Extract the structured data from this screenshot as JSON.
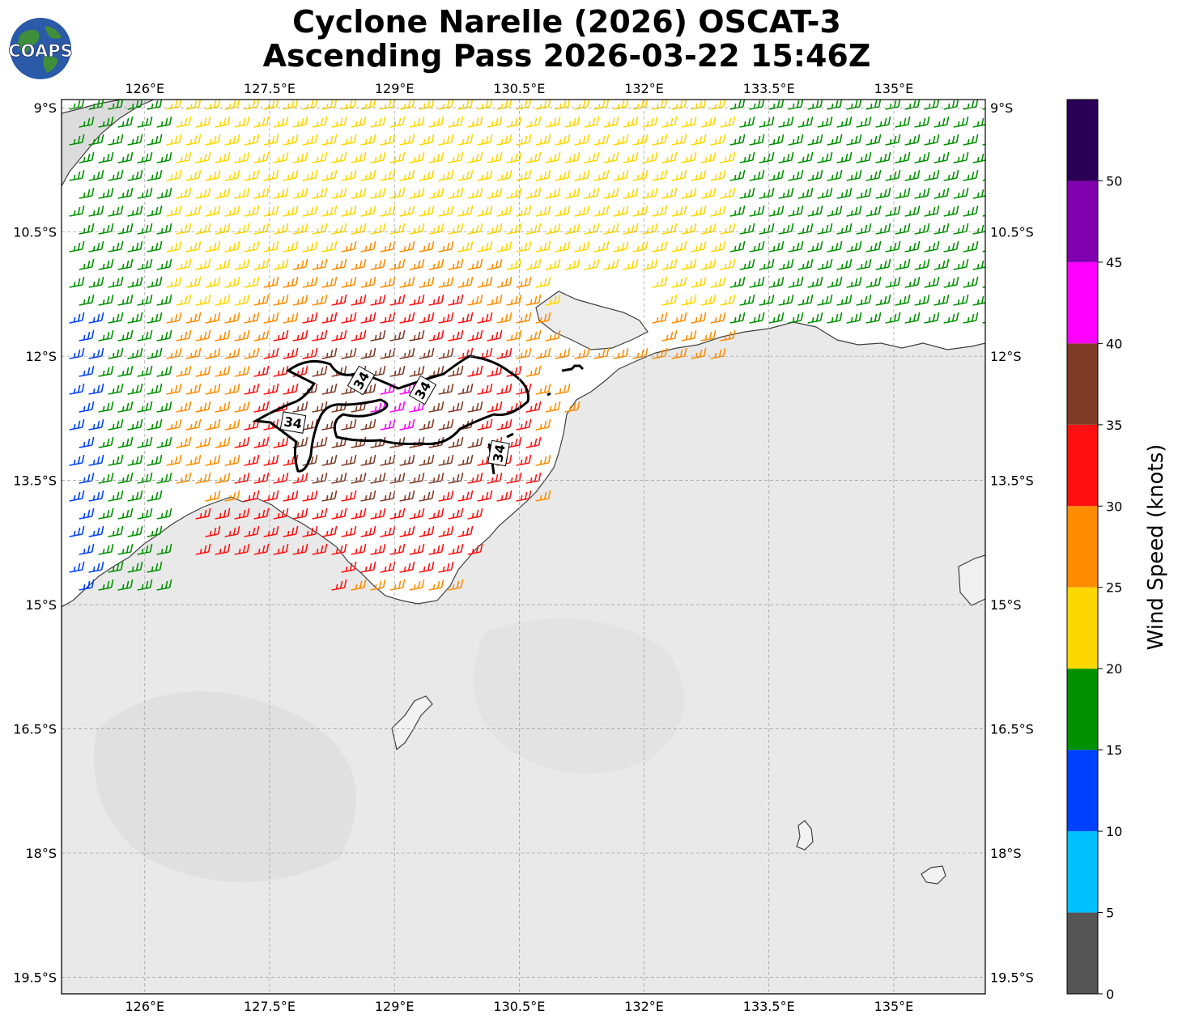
{
  "title_line1": "Cyclone Narelle (2026) OSCAT-3",
  "title_line2": "Ascending Pass 2026-03-22 15:46Z",
  "logo_text": "COAPS",
  "map": {
    "lon_range": [
      125.0,
      136.1
    ],
    "lat_range": [
      -19.7,
      -8.9
    ],
    "lon_ticks": [
      126,
      127.5,
      129,
      130.5,
      132,
      133.5,
      135
    ],
    "lon_tick_labels": [
      "126°E",
      "127.5°E",
      "129°E",
      "130.5°E",
      "132°E",
      "133.5°E",
      "135°E"
    ],
    "lat_ticks": [
      -9,
      -10.5,
      -12,
      -13.5,
      -15,
      -16.5,
      -18,
      -19.5
    ],
    "lat_tick_labels": [
      "9°S",
      "10.5°S",
      "12°S",
      "13.5°S",
      "15°S",
      "16.5°S",
      "18°S",
      "19.5°S"
    ],
    "contour_label": "34",
    "gridlines": true
  },
  "colorbar": {
    "label": "Wind Speed (knots)",
    "ticks": [
      "0",
      "5",
      "10",
      "15",
      "20",
      "25",
      "30",
      "35",
      "40",
      "45",
      "50"
    ],
    "bins": [
      {
        "min": 0,
        "max": 5,
        "color": "#555555"
      },
      {
        "min": 5,
        "max": 10,
        "color": "#00bfff"
      },
      {
        "min": 10,
        "max": 15,
        "color": "#0040ff"
      },
      {
        "min": 15,
        "max": 20,
        "color": "#009000"
      },
      {
        "min": 20,
        "max": 25,
        "color": "#ffd700"
      },
      {
        "min": 25,
        "max": 30,
        "color": "#ff8c00"
      },
      {
        "min": 30,
        "max": 35,
        "color": "#ff1010"
      },
      {
        "min": 35,
        "max": 40,
        "color": "#7f3c28"
      },
      {
        "min": 40,
        "max": 45,
        "color": "#ff00ff"
      },
      {
        "min": 45,
        "max": 50,
        "color": "#8000b0"
      },
      {
        "min": 50,
        "max": 55,
        "color": "#2a0055"
      }
    ]
  }
}
